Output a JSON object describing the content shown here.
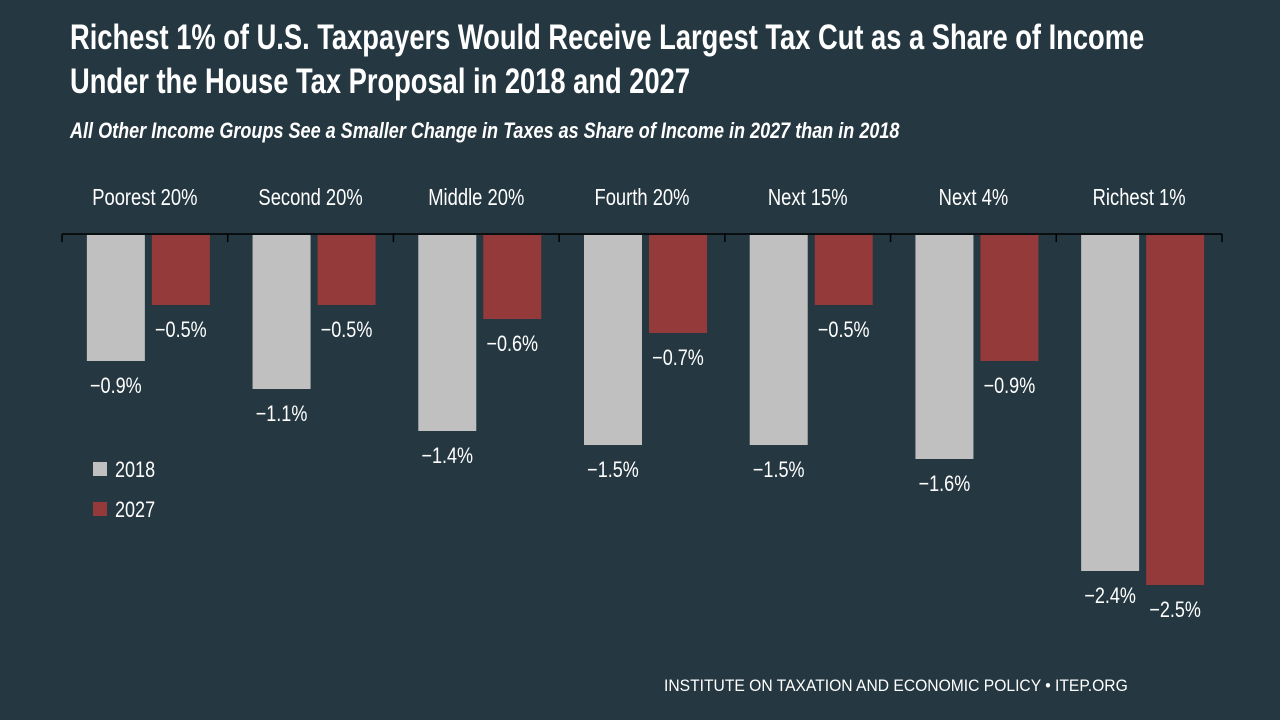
{
  "chart_data": {
    "type": "bar",
    "title": "Richest 1% of U.S. Taxpayers Would Receive Largest Tax Cut as a Share of Income Under the House Tax Proposal in 2018 and 2027",
    "title_lines": [
      "Richest 1% of U.S. Taxpayers Would Receive Largest Tax Cut as a Share of Income",
      "Under the House Tax Proposal in 2018 and 2027"
    ],
    "subtitle": "All Other Income Groups See a Smaller Change in Taxes as Share of Income in 2027 than in 2018",
    "categories": [
      "Poorest 20%",
      "Second 20%",
      "Middle 20%",
      "Fourth 20%",
      "Next 15%",
      "Next 4%",
      "Richest 1%"
    ],
    "series": [
      {
        "name": "2018",
        "color": "#c0c0c0",
        "values": [
          -0.9,
          -1.1,
          -1.4,
          -1.5,
          -1.5,
          -1.6,
          -2.4
        ]
      },
      {
        "name": "2027",
        "color": "#953a3a",
        "values": [
          -0.5,
          -0.5,
          -0.6,
          -0.7,
          -0.5,
          -0.9,
          -2.5
        ]
      }
    ],
    "data_labels": [
      [
        "−0.9%",
        "−1.1%",
        "−1.4%",
        "−1.5%",
        "−1.5%",
        "−1.6%",
        "−2.4%"
      ],
      [
        "−0.5%",
        "−0.5%",
        "−0.6%",
        "−0.7%",
        "−0.5%",
        "−0.9%",
        "−2.5%"
      ]
    ],
    "ylim": [
      -2.5,
      0
    ],
    "grid": false,
    "legend_placement": "left",
    "category_labels_position": "top"
  },
  "source": "INSTITUTE ON TAXATION AND ECONOMIC POLICY • ITEP.ORG",
  "colors": {
    "background": "#253740",
    "axis": "#000000"
  }
}
